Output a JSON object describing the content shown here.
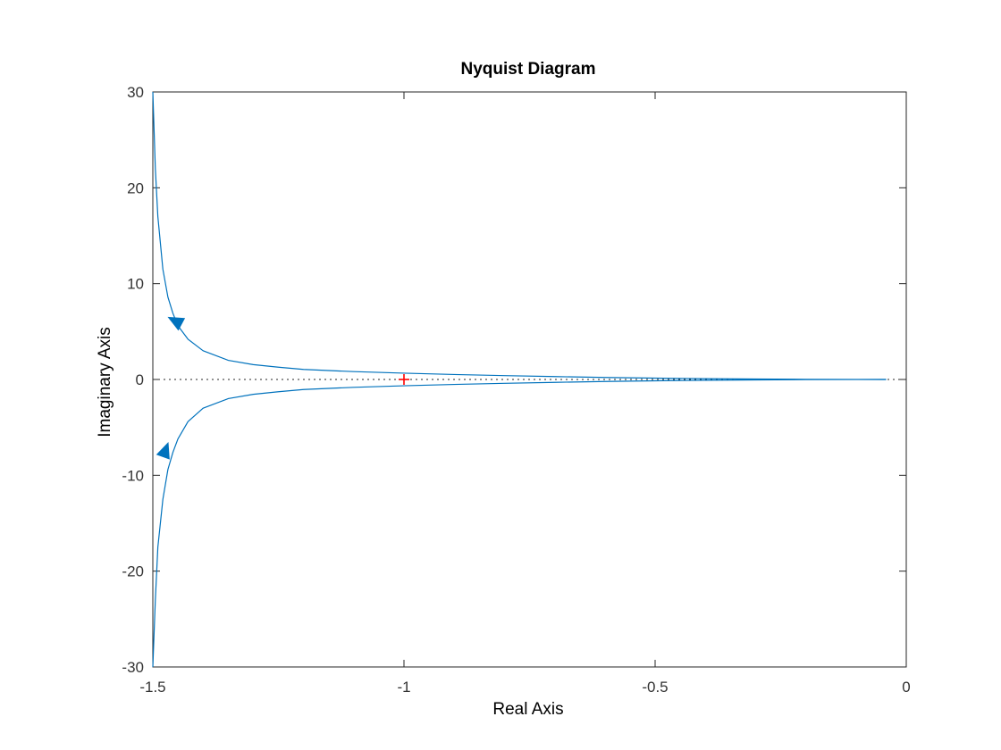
{
  "chart_data": {
    "type": "line",
    "title": "Nyquist Diagram",
    "xlabel": "Real Axis",
    "ylabel": "Imaginary Axis",
    "xlim": [
      -1.5,
      0
    ],
    "ylim": [
      -30,
      30
    ],
    "xticks": [
      -1.5,
      -1,
      -0.5,
      0
    ],
    "xtick_labels": [
      "-1.5",
      "-1",
      "-0.5",
      "0"
    ],
    "yticks": [
      -30,
      -20,
      -10,
      0,
      10,
      20,
      30
    ],
    "ytick_labels": [
      "-30",
      "-20",
      "-10",
      "0",
      "10",
      "20",
      "30"
    ],
    "grid": false,
    "series": [
      {
        "color": "#0072BD",
        "x": [
          -1.5,
          -1.495,
          -1.49,
          -1.48,
          -1.47,
          -1.46,
          -1.45,
          -1.43,
          -1.4,
          -1.35,
          -1.3,
          -1.25,
          -1.2,
          -1.1,
          -1.0,
          -0.9,
          -0.8,
          -0.7,
          -0.6,
          -0.5,
          -0.4,
          -0.3,
          -0.2,
          -0.1,
          -0.04
        ],
        "y": [
          30,
          22,
          17,
          11.5,
          8.6,
          6.9,
          5.6,
          4.2,
          3.0,
          2.0,
          1.55,
          1.28,
          1.05,
          0.82,
          0.66,
          0.52,
          0.4,
          0.3,
          0.21,
          0.14,
          0.08,
          0.045,
          0.02,
          0.006,
          0
        ]
      },
      {
        "color": "#0072BD",
        "x": [
          -0.04,
          -0.1,
          -0.2,
          -0.3,
          -0.4,
          -0.5,
          -0.6,
          -0.7,
          -0.8,
          -0.9,
          -1.0,
          -1.1,
          -1.2,
          -1.25,
          -1.3,
          -1.35,
          -1.4,
          -1.43,
          -1.45,
          -1.46,
          -1.47,
          -1.48,
          -1.49,
          -1.495,
          -1.5
        ],
        "y": [
          0,
          -0.006,
          -0.02,
          -0.045,
          -0.08,
          -0.14,
          -0.21,
          -0.3,
          -0.4,
          -0.52,
          -0.66,
          -0.82,
          -1.05,
          -1.28,
          -1.55,
          -2.0,
          -3.0,
          -4.4,
          -6.2,
          -7.6,
          -9.4,
          -12.5,
          -17.5,
          -23,
          -30
        ]
      }
    ],
    "arrows": [
      {
        "x": -1.455,
        "y": 6.1,
        "direction": "up-left"
      },
      {
        "x": -1.475,
        "y": -7.4,
        "direction": "up-right"
      }
    ],
    "critical_point": {
      "x": -1,
      "y": 0,
      "marker": "+",
      "color": "#ff0000"
    },
    "zero_line": {
      "y": 0,
      "style": "dotted"
    }
  }
}
